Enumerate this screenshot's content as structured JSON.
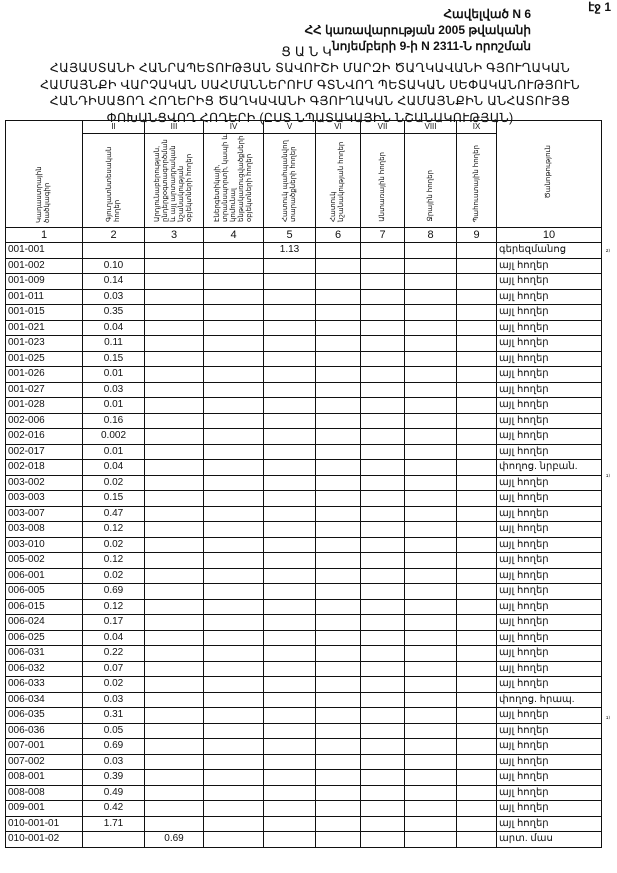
{
  "page_number": "էջ 1",
  "annex": [
    "Հավելված N 6",
    "ՀՀ կառավարության 2005 թվականի",
    "նոյեմբերի 9-ի N 2311-Ն որոշման"
  ],
  "list_word": "ՑԱՆԿ",
  "title": "ՀԱՅԱՍՏԱՆԻ ՀԱՆՐԱՊԵՏՈՒԹՅԱՆ ՏԱՎՈՒՇԻ ՄԱՐԶԻ ԾԱՂԿԱՎԱՆԻ ԳՅՈՒՂԱԿԱՆ ՀԱՄԱՅՆՔԻ ՎԱՐՉԱԿԱՆ ՍԱՀՄԱՆՆԵՐՈՒՄ ԳՏՆՎՈՂ ՊԵՏԱԿԱՆ ՍԵՓԱԿԱՆՈՒԹՅՈՒՆ ՀԱՆԴԻՍԱՑՈՂ ՀՈՂԵՐԻՑ ԾԱՂԿԱՎԱՆԻ ԳՅՈՒՂԱԿԱՆ ՀԱՄԱՅՆՔԻՆ ԱՆՀԱՏՈՒՅՑ ՓՈԽԱՆՑՎՈՂ ՀՈՂԵՐԻ (ԸՍՏ ՆՊԱՏԱԿԱՅԻՆ ՆՇԱՆԱԿՈՒԹՅԱՆ)",
  "table": {
    "roman": [
      "II",
      "III",
      "IV",
      "V",
      "VI",
      "VII",
      "VIII",
      "IX"
    ],
    "headers": [
      "Կադաստրային ծածկագիր",
      "Գյուղատնտեսական հողեր",
      "Արդյունաբերության, ընդերքօգտագործման և այլ արտադրական նշանակության օբյեկտների հողեր",
      "Էներգետիկայի, տրանսպորտի, կապի և կոմունալ ենթակառուցվածքների օբյեկտների հողեր",
      "Հատուկ պահպանվող տարածքների հողեր",
      "Հատուկ նշանակության հողեր",
      "Անտառային հողեր",
      "Ջրային հողեր",
      "Պահուստային հողեր",
      "Ծանոթություն"
    ],
    "numbers": [
      "1",
      "2",
      "3",
      "4",
      "5",
      "6",
      "7",
      "8",
      "9",
      "10"
    ],
    "rows": [
      {
        "code": "001-001",
        "c2": "",
        "c3": "",
        "c5": "1.13",
        "note": "գերեզմանոց",
        "fn": "²⁾"
      },
      {
        "code": "001-002",
        "c2": "0.10",
        "note": "այլ հողեր"
      },
      {
        "code": "001-009",
        "c2": "0.14",
        "note": "այլ հողեր"
      },
      {
        "code": "001-011",
        "c2": "0.03",
        "note": "այլ հողեր"
      },
      {
        "code": "001-015",
        "c2": "0.35",
        "note": "այլ հողեր"
      },
      {
        "code": "001-021",
        "c2": "0.04",
        "note": "այլ հողեր"
      },
      {
        "code": "001-023",
        "c2": "0.11",
        "note": "այլ հողեր"
      },
      {
        "code": "001-025",
        "c2": "0.15",
        "note": "այլ հողեր"
      },
      {
        "code": "001-026",
        "c2": "0.01",
        "note": "այլ հողեր"
      },
      {
        "code": "001-027",
        "c2": "0.03",
        "note": "այլ հողեր"
      },
      {
        "code": "001-028",
        "c2": "0.01",
        "note": "այլ հողեր"
      },
      {
        "code": "002-006",
        "c2": "0.16",
        "note": "այլ հողեր"
      },
      {
        "code": "002-016",
        "c2": "0.002",
        "note": "այլ հողեր"
      },
      {
        "code": "002-017",
        "c2": "0.01",
        "note": "այլ հողեր"
      },
      {
        "code": "002-018",
        "c2": "0.04",
        "note": "փողոց. նրբան.",
        "fn": "¹⁾"
      },
      {
        "code": "003-002",
        "c2": "0.02",
        "note": "այլ հողեր"
      },
      {
        "code": "003-003",
        "c2": "0.15",
        "note": "այլ հողեր"
      },
      {
        "code": "003-007",
        "c2": "0.47",
        "note": "այլ հողեր"
      },
      {
        "code": "003-008",
        "c2": "0.12",
        "note": "այլ հողեր"
      },
      {
        "code": "003-010",
        "c2": "0.02",
        "note": "այլ հողեր"
      },
      {
        "code": "005-002",
        "c2": "0.12",
        "note": "այլ հողեր"
      },
      {
        "code": "006-001",
        "c2": "0.02",
        "note": "այլ հողեր"
      },
      {
        "code": "006-005",
        "c2": "0.69",
        "note": "այլ հողեր"
      },
      {
        "code": "006-015",
        "c2": "0.12",
        "note": "այլ հողեր"
      },
      {
        "code": "006-024",
        "c2": "0.17",
        "note": "այլ հողեր"
      },
      {
        "code": "006-025",
        "c2": "0.04",
        "note": "այլ հողեր"
      },
      {
        "code": "006-031",
        "c2": "0.22",
        "note": "այլ հողեր"
      },
      {
        "code": "006-032",
        "c2": "0.07",
        "note": "այլ հողեր"
      },
      {
        "code": "006-033",
        "c2": "0.02",
        "note": "այլ հողեր"
      },
      {
        "code": "006-034",
        "c2": "0.03",
        "note": "փողոց. հրապ.",
        "fn": "¹⁾"
      },
      {
        "code": "006-035",
        "c2": "0.31",
        "note": "այլ հողեր"
      },
      {
        "code": "006-036",
        "c2": "0.05",
        "note": "այլ հողեր"
      },
      {
        "code": "007-001",
        "c2": "0.69",
        "note": "այլ հողեր"
      },
      {
        "code": "007-002",
        "c2": "0.03",
        "note": "այլ հողեր"
      },
      {
        "code": "008-001",
        "c2": "0.39",
        "note": "այլ հողեր"
      },
      {
        "code": "008-008",
        "c2": "0.49",
        "note": "այլ հողեր"
      },
      {
        "code": "009-001",
        "c2": "0.42",
        "note": "այլ հողեր"
      },
      {
        "code": "010-001-01",
        "c2": "1.71",
        "note": "այլ հողեր"
      },
      {
        "code": "010-001-02",
        "c2": "",
        "c3": "0.69",
        "note": "արտ. մաս"
      }
    ]
  }
}
